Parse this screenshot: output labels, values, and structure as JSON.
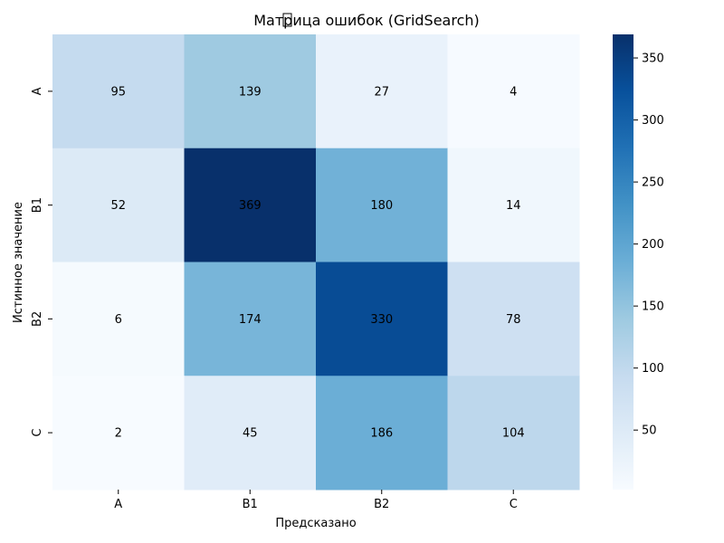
{
  "chart_data": {
    "type": "heatmap",
    "title": "Матрица ошибок (GridSearch)",
    "title_icon": "missing-glyph-box",
    "xlabel": "Предсказано",
    "ylabel": "Истинное значение",
    "x_categories": [
      "A",
      "B1",
      "B2",
      "C"
    ],
    "y_categories": [
      "A",
      "B1",
      "B2",
      "C"
    ],
    "values": [
      [
        95,
        139,
        27,
        4
      ],
      [
        52,
        369,
        180,
        14
      ],
      [
        6,
        174,
        330,
        78
      ],
      [
        2,
        45,
        186,
        104
      ]
    ],
    "colorbar": {
      "min": 2,
      "max": 369,
      "ticks": [
        50,
        100,
        150,
        200,
        250,
        300,
        350
      ]
    },
    "colormap": "Blues",
    "colors": {
      "low": "#f7fbff",
      "high": "#08306b",
      "text_dark": "#262626",
      "text_light": "#ffffff"
    }
  }
}
